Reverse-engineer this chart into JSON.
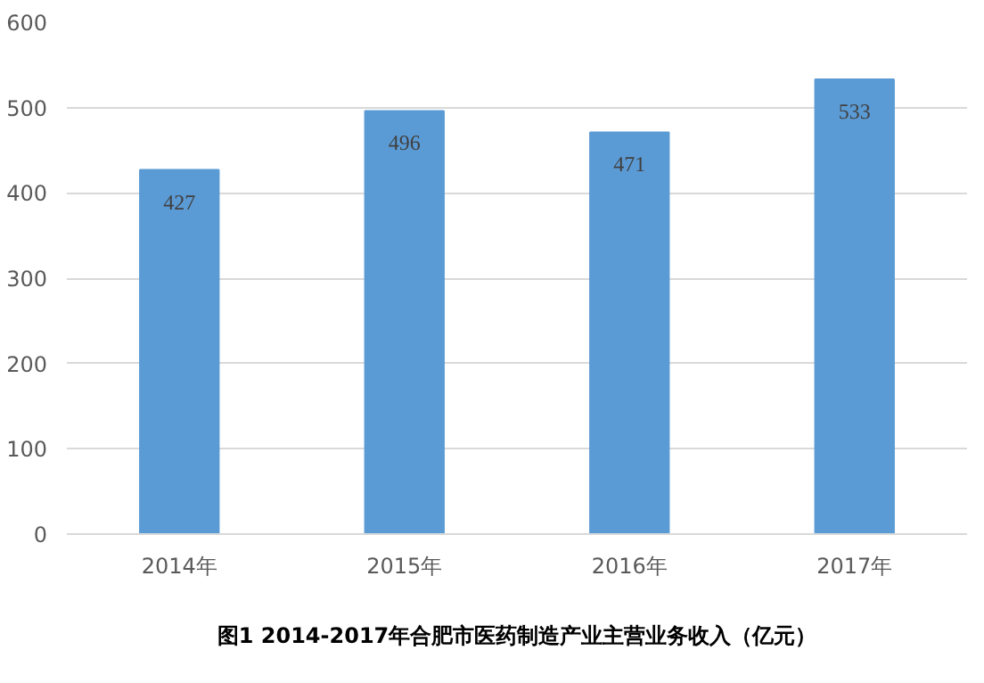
{
  "chart_data": {
    "type": "bar",
    "title": "图1 2014-2017年合肥市医药制造产业主营业务收入（亿元）",
    "categories": [
      "2014年",
      "2015年",
      "2016年",
      "2017年"
    ],
    "values": [
      427,
      496,
      471,
      533
    ],
    "color": "#5b9bd5",
    "ylim": [
      0,
      600
    ],
    "yticks": [
      0,
      100,
      200,
      300,
      400,
      500,
      600
    ],
    "grid": "y",
    "data_labels": true
  }
}
